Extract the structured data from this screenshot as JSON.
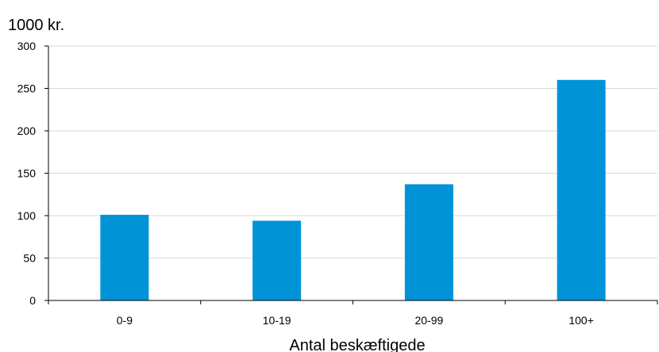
{
  "chart_data": {
    "type": "bar",
    "title": "",
    "unit_label": "1000 kr.",
    "xlabel": "Antal beskæftigede",
    "ylabel": "",
    "categories": [
      "0-9",
      "10-19",
      "20-99",
      "100+"
    ],
    "values": [
      101,
      94,
      137,
      260
    ],
    "ylim": [
      0,
      300
    ],
    "yticks": [
      0,
      50,
      100,
      150,
      200,
      250,
      300
    ],
    "grid": true,
    "legend": "none",
    "colors": {
      "bar": "#0093d8",
      "grid": "#d9d9d9",
      "axis": "#000000"
    }
  }
}
